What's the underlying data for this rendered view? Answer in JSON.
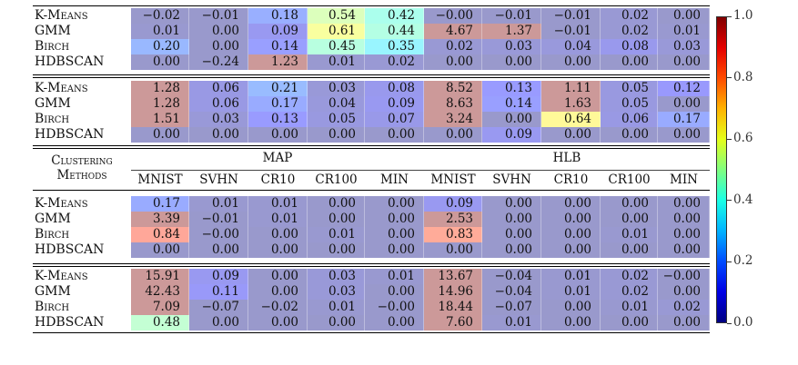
{
  "chart_data": {
    "type": "heatmap",
    "colormap": "jet",
    "cell_alpha": 0.4,
    "colorbar": {
      "min": 0.0,
      "max": 1.0,
      "ticks": [
        "0.0",
        "0.2",
        "0.4",
        "0.6",
        "0.8",
        "1.0"
      ]
    },
    "header": {
      "row_label": [
        "Clustering",
        "Methods"
      ],
      "groups": [
        "MAP",
        "HLB"
      ],
      "columns": [
        "MNIST",
        "SVHN",
        "CR10",
        "CR100",
        "MIN",
        "MNIST",
        "SVHN",
        "CR10",
        "CR100",
        "MIN"
      ]
    },
    "blocks": [
      {
        "rows": [
          {
            "method": "K-Means",
            "values": [
              "−0.02",
              "−0.01",
              "0.18",
              "0.54",
              "0.42",
              "−0.00",
              "−0.01",
              "−0.01",
              "0.02",
              "0.00"
            ]
          },
          {
            "method": "GMM",
            "values": [
              "0.01",
              "0.00",
              "0.09",
              "0.61",
              "0.44",
              "4.67",
              "1.37",
              "−0.01",
              "0.02",
              "0.01"
            ]
          },
          {
            "method": "Birch",
            "values": [
              "0.20",
              "0.00",
              "0.14",
              "0.45",
              "0.35",
              "0.02",
              "0.03",
              "0.04",
              "0.08",
              "0.03"
            ]
          },
          {
            "method": "HDBSCAN",
            "values": [
              "0.00",
              "−0.24",
              "1.23",
              "0.01",
              "0.02",
              "0.00",
              "0.00",
              "0.00",
              "0.00",
              "0.00"
            ]
          }
        ]
      },
      {
        "rows": [
          {
            "method": "K-Means",
            "values": [
              "1.28",
              "0.06",
              "0.21",
              "0.03",
              "0.08",
              "8.52",
              "0.13",
              "1.11",
              "0.05",
              "0.12"
            ]
          },
          {
            "method": "GMM",
            "values": [
              "1.28",
              "0.06",
              "0.17",
              "0.04",
              "0.09",
              "8.63",
              "0.14",
              "1.63",
              "0.05",
              "0.00"
            ]
          },
          {
            "method": "Birch",
            "values": [
              "1.51",
              "0.03",
              "0.13",
              "0.05",
              "0.07",
              "3.24",
              "0.00",
              "0.64",
              "0.06",
              "0.17"
            ]
          },
          {
            "method": "HDBSCAN",
            "values": [
              "0.00",
              "0.00",
              "0.00",
              "0.00",
              "0.00",
              "0.00",
              "0.09",
              "0.00",
              "0.00",
              "0.00"
            ]
          }
        ]
      },
      {
        "rows": [
          {
            "method": "K-Means",
            "values": [
              "0.17",
              "0.01",
              "0.01",
              "0.00",
              "0.00",
              "0.09",
              "0.00",
              "0.00",
              "0.00",
              "0.00"
            ]
          },
          {
            "method": "GMM",
            "values": [
              "3.39",
              "−0.01",
              "0.01",
              "0.00",
              "0.00",
              "2.53",
              "0.00",
              "0.00",
              "0.00",
              "0.00"
            ]
          },
          {
            "method": "Birch",
            "values": [
              "0.84",
              "−0.00",
              "0.00",
              "0.01",
              "0.00",
              "0.83",
              "0.00",
              "0.00",
              "0.01",
              "0.00"
            ]
          },
          {
            "method": "HDBSCAN",
            "values": [
              "0.00",
              "0.00",
              "0.00",
              "0.00",
              "0.00",
              "0.00",
              "0.00",
              "0.00",
              "0.00",
              "0.00"
            ]
          }
        ]
      },
      {
        "rows": [
          {
            "method": "K-Means",
            "values": [
              "15.91",
              "0.09",
              "0.00",
              "0.03",
              "0.01",
              "13.67",
              "−0.04",
              "0.01",
              "0.02",
              "−0.00"
            ]
          },
          {
            "method": "GMM",
            "values": [
              "42.43",
              "0.11",
              "0.00",
              "0.03",
              "0.00",
              "14.96",
              "−0.04",
              "0.01",
              "0.02",
              "0.00"
            ]
          },
          {
            "method": "Birch",
            "values": [
              "7.09",
              "−0.07",
              "−0.02",
              "0.01",
              "−0.00",
              "18.44",
              "−0.07",
              "0.00",
              "0.01",
              "0.02"
            ]
          },
          {
            "method": "HDBSCAN",
            "values": [
              "0.48",
              "0.00",
              "0.00",
              "0.00",
              "0.00",
              "7.60",
              "0.01",
              "0.00",
              "0.00",
              "0.00"
            ]
          }
        ]
      }
    ]
  }
}
